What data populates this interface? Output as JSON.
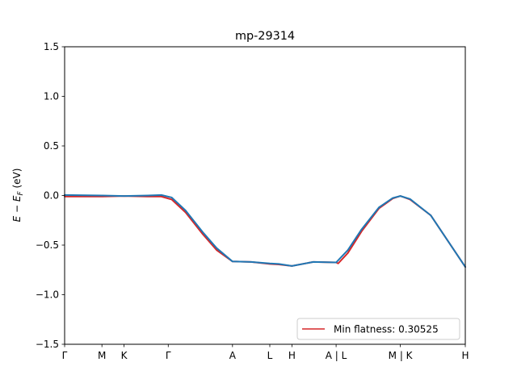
{
  "chart_data": {
    "type": "line",
    "title": "mp-29314",
    "xlabel": "",
    "ylabel": "E − E_F (eV)",
    "ylabel_parts": {
      "main": "E − E",
      "sub": "F",
      "unit": " (eV)"
    },
    "ylim": [
      -1.5,
      1.5
    ],
    "yticks": [
      -1.5,
      -1.0,
      -0.5,
      0.0,
      0.5,
      1.0,
      1.5
    ],
    "ytick_labels": [
      "−1.5",
      "−1.0",
      "−0.5",
      "0.0",
      "0.5",
      "1.0",
      "1.5"
    ],
    "xlim": [
      0,
      5.8
    ],
    "xticks": [
      {
        "pos": 0.0,
        "label": "Γ"
      },
      {
        "pos": 0.54,
        "label": "M"
      },
      {
        "pos": 0.86,
        "label": "K"
      },
      {
        "pos": 1.5,
        "label": "Γ"
      },
      {
        "pos": 2.43,
        "label": "A"
      },
      {
        "pos": 2.97,
        "label": "L"
      },
      {
        "pos": 3.29,
        "label": "H"
      },
      {
        "pos": 3.93,
        "label": "A | L"
      },
      {
        "pos": 4.86,
        "label": "M | K"
      },
      {
        "pos": 5.8,
        "label": "H"
      }
    ],
    "grid": false,
    "legend": {
      "placement": "lower-right",
      "entries": [
        {
          "label": "Min flatness: 0.30525",
          "color": "#d62728"
        }
      ]
    },
    "series": [
      {
        "name": "Min flatness: 0.30525",
        "color": "#d62728",
        "x": [
          0,
          0.54,
          0.86,
          1.2,
          1.4,
          1.55,
          1.75,
          2.0,
          2.2,
          2.43,
          2.7,
          2.97,
          3.1,
          3.29,
          3.6,
          3.93,
          3.96,
          4.1,
          4.3,
          4.55,
          4.75,
          4.86,
          5.0,
          5.3,
          5.55,
          5.8
        ],
        "y": [
          -0.01,
          -0.01,
          -0.005,
          -0.01,
          -0.01,
          -0.04,
          -0.17,
          -0.39,
          -0.55,
          -0.665,
          -0.67,
          -0.69,
          -0.695,
          -0.71,
          -0.67,
          -0.675,
          -0.685,
          -0.58,
          -0.36,
          -0.13,
          -0.03,
          -0.005,
          -0.04,
          -0.2,
          -0.46,
          -0.72
        ]
      },
      {
        "color": "#1f77b4",
        "x": [
          0,
          0.54,
          0.86,
          1.2,
          1.4,
          1.55,
          1.75,
          2.0,
          2.2,
          2.43,
          2.7,
          2.97,
          3.1,
          3.29,
          3.6,
          3.93,
          4.1,
          4.3,
          4.55,
          4.75,
          4.86,
          5.0,
          5.3,
          5.55,
          5.8
        ],
        "y": [
          0.005,
          0.0,
          -0.005,
          0.0,
          0.005,
          -0.02,
          -0.15,
          -0.37,
          -0.53,
          -0.665,
          -0.67,
          -0.685,
          -0.69,
          -0.71,
          -0.67,
          -0.675,
          -0.55,
          -0.34,
          -0.12,
          -0.025,
          -0.005,
          -0.035,
          -0.2,
          -0.46,
          -0.72
        ]
      }
    ]
  }
}
